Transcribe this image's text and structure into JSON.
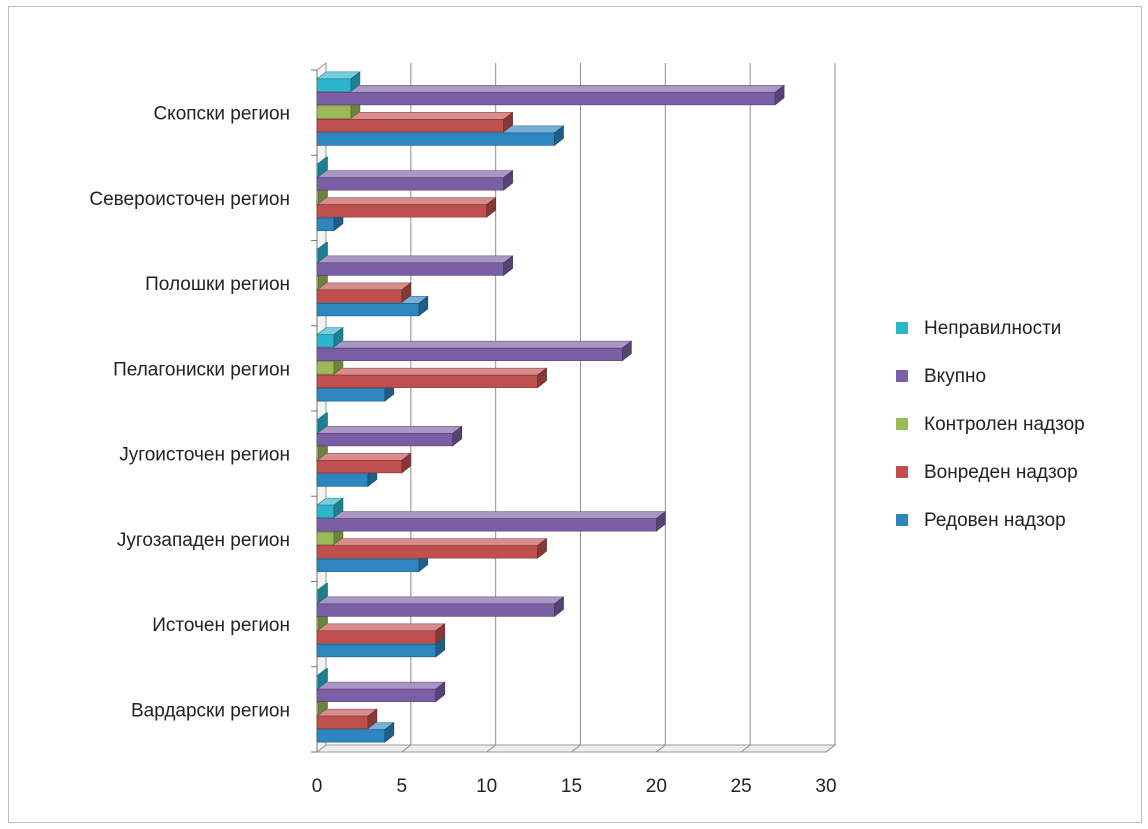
{
  "chart_data": {
    "type": "bar",
    "orientation": "horizontal",
    "style": "3d-clustered",
    "title": "",
    "xlabel": "",
    "ylabel": "",
    "xlim": [
      0,
      30
    ],
    "x_ticks": [
      "0",
      "5",
      "10",
      "15",
      "20",
      "25",
      "30"
    ],
    "grid": "vertical",
    "legend_position": "right",
    "categories": [
      "Скопски регион",
      "Североисточен регион",
      "Полошки регион",
      "Пелагониски регион",
      "Југоисточен регион",
      "Југозападен  регион",
      "Источен регион",
      "Вардарски регион"
    ],
    "series": [
      {
        "name": "Неправилности",
        "color": "#2cb5cf",
        "values": [
          2,
          0,
          0,
          1,
          0,
          1,
          0,
          0
        ]
      },
      {
        "name": "Вкупно",
        "color": "#7b5fa6",
        "values": [
          27,
          11,
          11,
          18,
          8,
          20,
          14,
          7
        ]
      },
      {
        "name": "Контролен надзор",
        "color": "#9bbb59",
        "values": [
          2,
          0,
          0,
          1,
          0,
          1,
          0,
          0
        ]
      },
      {
        "name": "Вонреден надзор",
        "color": "#c0504d",
        "values": [
          11,
          10,
          5,
          13,
          5,
          13,
          7,
          3
        ]
      },
      {
        "name": "Редовен надзор",
        "color": "#2e86c1",
        "values": [
          14,
          1,
          6,
          4,
          3,
          6,
          7,
          4
        ]
      }
    ]
  }
}
